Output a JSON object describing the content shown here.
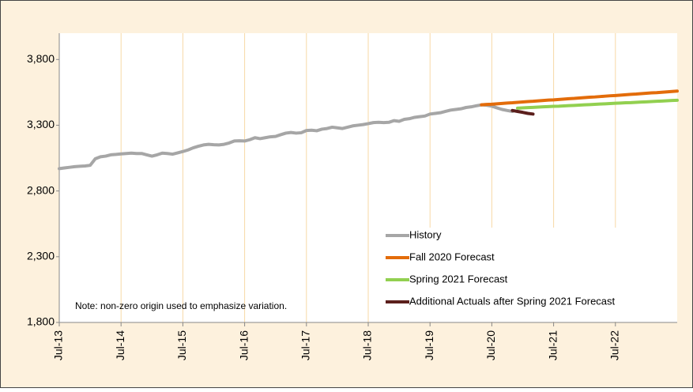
{
  "chart_data": {
    "type": "line",
    "note": "Note: non-zero origin used to emphasize variation.",
    "categories": [
      "Jul-13",
      null,
      null,
      null,
      null,
      null,
      null,
      null,
      null,
      null,
      null,
      null,
      "Jul-14",
      null,
      null,
      null,
      null,
      null,
      null,
      null,
      null,
      null,
      null,
      null,
      "Jul-15",
      null,
      null,
      null,
      null,
      null,
      null,
      null,
      null,
      null,
      null,
      null,
      "Jul-16",
      null,
      null,
      null,
      null,
      null,
      null,
      null,
      null,
      null,
      null,
      null,
      "Jul-17",
      null,
      null,
      null,
      null,
      null,
      null,
      null,
      null,
      null,
      null,
      null,
      "Jul-18",
      null,
      null,
      null,
      null,
      null,
      null,
      null,
      null,
      null,
      null,
      null,
      "Jul-19",
      null,
      null,
      null,
      null,
      null,
      null,
      null,
      null,
      null,
      null,
      null,
      "Jul-20",
      null,
      null,
      null,
      null,
      null,
      null,
      null,
      null,
      null,
      null,
      null,
      "Jul-21",
      null,
      null,
      null,
      null,
      null,
      null,
      null,
      null,
      null,
      null,
      null,
      "Jul-22",
      null,
      null,
      null,
      null,
      null,
      null,
      null,
      null,
      null,
      null,
      null,
      null
    ],
    "series": [
      {
        "name": "History",
        "color": "#a6a6a6",
        "values": [
          2970,
          2975,
          2980,
          2985,
          2988,
          2990,
          2995,
          3045,
          3060,
          3065,
          3075,
          3078,
          3082,
          3085,
          3088,
          3085,
          3085,
          3075,
          3065,
          3075,
          3088,
          3085,
          3080,
          3090,
          3100,
          3112,
          3128,
          3140,
          3150,
          3155,
          3152,
          3150,
          3155,
          3165,
          3180,
          3182,
          3180,
          3190,
          3205,
          3198,
          3205,
          3212,
          3215,
          3228,
          3240,
          3245,
          3240,
          3243,
          3260,
          3262,
          3258,
          3270,
          3275,
          3285,
          3280,
          3275,
          3285,
          3295,
          3300,
          3305,
          3312,
          3320,
          3322,
          3320,
          3322,
          3335,
          3330,
          3345,
          3350,
          3360,
          3365,
          3370,
          3385,
          3390,
          3395,
          3405,
          3415,
          3420,
          3425,
          3435,
          3440,
          3448,
          3455,
          3452,
          3445,
          3432,
          3420,
          3412,
          3405,
          null,
          null,
          null,
          null,
          null,
          null,
          null,
          null,
          null,
          null,
          null,
          null,
          null,
          null,
          null,
          null,
          null,
          null,
          null,
          null,
          null,
          null,
          null,
          null,
          null,
          null,
          null,
          null,
          null,
          null,
          null,
          null
        ]
      },
      {
        "name": "Fall 2020 Forecast",
        "color": "#e36c0a",
        "values": [
          null,
          null,
          null,
          null,
          null,
          null,
          null,
          null,
          null,
          null,
          null,
          null,
          null,
          null,
          null,
          null,
          null,
          null,
          null,
          null,
          null,
          null,
          null,
          null,
          null,
          null,
          null,
          null,
          null,
          null,
          null,
          null,
          null,
          null,
          null,
          null,
          null,
          null,
          null,
          null,
          null,
          null,
          null,
          null,
          null,
          null,
          null,
          null,
          null,
          null,
          null,
          null,
          null,
          null,
          null,
          null,
          null,
          null,
          null,
          null,
          null,
          null,
          null,
          null,
          null,
          null,
          null,
          null,
          null,
          null,
          null,
          null,
          null,
          null,
          null,
          null,
          null,
          null,
          null,
          null,
          null,
          null,
          3455,
          3458,
          3460,
          3463,
          3466,
          3469,
          3471,
          3474,
          3477,
          3480,
          3482,
          3485,
          3488,
          3491,
          3493,
          3496,
          3499,
          3502,
          3504,
          3507,
          3510,
          3513,
          3515,
          3518,
          3521,
          3524,
          3526,
          3529,
          3532,
          3535,
          3537,
          3540,
          3543,
          3546,
          3548,
          3551,
          3554,
          3557,
          3560
        ]
      },
      {
        "name": "Spring 2021 Forecast",
        "color": "#92d050",
        "values": [
          null,
          null,
          null,
          null,
          null,
          null,
          null,
          null,
          null,
          null,
          null,
          null,
          null,
          null,
          null,
          null,
          null,
          null,
          null,
          null,
          null,
          null,
          null,
          null,
          null,
          null,
          null,
          null,
          null,
          null,
          null,
          null,
          null,
          null,
          null,
          null,
          null,
          null,
          null,
          null,
          null,
          null,
          null,
          null,
          null,
          null,
          null,
          null,
          null,
          null,
          null,
          null,
          null,
          null,
          null,
          null,
          null,
          null,
          null,
          null,
          null,
          null,
          null,
          null,
          null,
          null,
          null,
          null,
          null,
          null,
          null,
          null,
          null,
          null,
          null,
          null,
          null,
          null,
          null,
          null,
          null,
          null,
          null,
          null,
          null,
          null,
          null,
          null,
          null,
          3430,
          3432,
          3434,
          3436,
          3438,
          3440,
          3442,
          3444,
          3445,
          3447,
          3449,
          3451,
          3453,
          3455,
          3457,
          3459,
          3461,
          3463,
          3465,
          3467,
          3469,
          3471,
          3472,
          3474,
          3476,
          3478,
          3480,
          3482,
          3484,
          3486,
          3488,
          3490
        ]
      },
      {
        "name": "Additional Actuals after Spring 2021 Forecast",
        "color": "#5b1f1c",
        "values": [
          null,
          null,
          null,
          null,
          null,
          null,
          null,
          null,
          null,
          null,
          null,
          null,
          null,
          null,
          null,
          null,
          null,
          null,
          null,
          null,
          null,
          null,
          null,
          null,
          null,
          null,
          null,
          null,
          null,
          null,
          null,
          null,
          null,
          null,
          null,
          null,
          null,
          null,
          null,
          null,
          null,
          null,
          null,
          null,
          null,
          null,
          null,
          null,
          null,
          null,
          null,
          null,
          null,
          null,
          null,
          null,
          null,
          null,
          null,
          null,
          null,
          null,
          null,
          null,
          null,
          null,
          null,
          null,
          null,
          null,
          null,
          null,
          null,
          null,
          null,
          null,
          null,
          null,
          null,
          null,
          null,
          null,
          null,
          null,
          null,
          null,
          null,
          null,
          3412,
          3405,
          3398,
          3390,
          3385,
          null,
          null,
          null,
          null,
          null,
          null,
          null,
          null,
          null,
          null,
          null,
          null,
          null,
          null,
          null,
          null,
          null,
          null,
          null,
          null,
          null,
          null,
          null,
          null,
          null,
          null,
          null,
          null
        ]
      }
    ],
    "ylim": [
      1800,
      4000
    ],
    "yticks": [
      {
        "value": 1800,
        "label": "1,800"
      },
      {
        "value": 2300,
        "label": "2,300"
      },
      {
        "value": 2800,
        "label": "2,800"
      },
      {
        "value": 3300,
        "label": "3,300"
      },
      {
        "value": 3800,
        "label": "3,800"
      }
    ],
    "grid": true,
    "legend": "lower right"
  }
}
